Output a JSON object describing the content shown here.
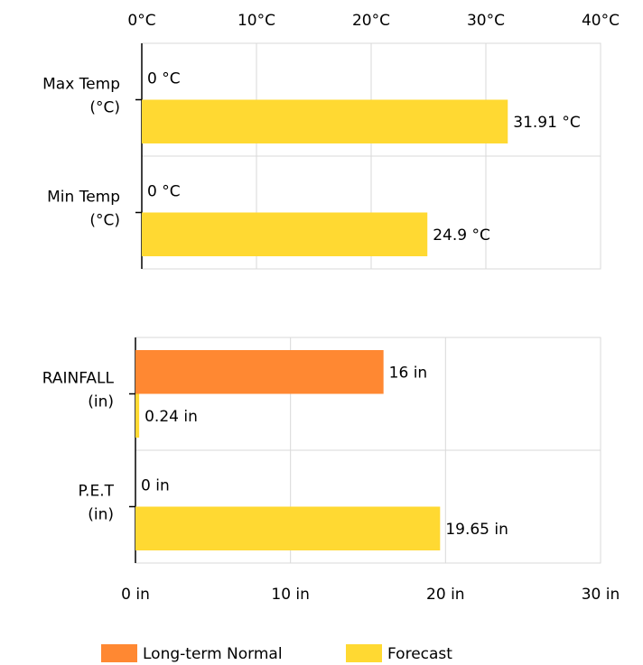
{
  "chart_data": [
    {
      "type": "bar",
      "orientation": "horizontal",
      "xlim": [
        0,
        40
      ],
      "x_ticks": [
        "0°C",
        "10°C",
        "20°C",
        "30°C",
        "40°C"
      ],
      "categories": [
        "Max Temp\n(°C)",
        "Min Temp\n(°C)"
      ],
      "series": [
        {
          "name": "Long-term Normal",
          "color": "#ff8832",
          "values": [
            0,
            0
          ],
          "labels": [
            "0 °C",
            "0 °C"
          ]
        },
        {
          "name": "Forecast",
          "color": "#ffd932",
          "values": [
            31.91,
            24.9
          ],
          "labels": [
            "31.91 °C",
            "24.9 °C"
          ]
        }
      ],
      "grid": true
    },
    {
      "type": "bar",
      "orientation": "horizontal",
      "xlim": [
        0,
        30
      ],
      "x_ticks": [
        "0 in",
        "10 in",
        "20 in",
        "30 in"
      ],
      "categories": [
        "RAINFALL\n(in)",
        "P.E.T\n(in)"
      ],
      "series": [
        {
          "name": "Long-term Normal",
          "color": "#ff8832",
          "values": [
            16,
            0
          ],
          "labels": [
            "16 in",
            "0 in"
          ]
        },
        {
          "name": "Forecast",
          "color": "#ffd932",
          "values": [
            0.24,
            19.65
          ],
          "labels": [
            "0.24 in",
            "19.65 in"
          ]
        }
      ],
      "grid": true
    }
  ],
  "legend": {
    "placement": "bottom",
    "items": [
      {
        "label": "Long-term Normal",
        "color": "#ff8832"
      },
      {
        "label": "Forecast",
        "color": "#ffd932"
      }
    ]
  }
}
